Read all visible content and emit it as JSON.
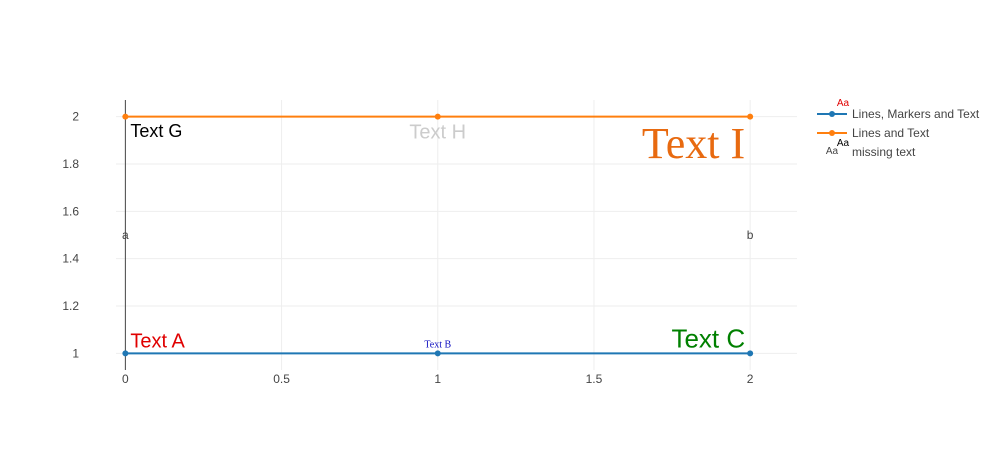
{
  "chart_data": {
    "type": "line",
    "title": "",
    "xlabel": "",
    "ylabel": "",
    "xlim": [
      -0.03,
      2.15
    ],
    "ylim": [
      0.93,
      2.07
    ],
    "grid": true,
    "legend_position": "right",
    "x_ticks": [
      {
        "value": 0,
        "label": "0"
      },
      {
        "value": 0.5,
        "label": "0.5"
      },
      {
        "value": 1,
        "label": "1"
      },
      {
        "value": 1.5,
        "label": "1.5"
      },
      {
        "value": 2,
        "label": "2"
      }
    ],
    "y_ticks": [
      {
        "value": 1,
        "label": "1"
      },
      {
        "value": 1.2,
        "label": "1.2"
      },
      {
        "value": 1.4,
        "label": "1.4"
      },
      {
        "value": 1.6,
        "label": "1.6"
      },
      {
        "value": 1.8,
        "label": "1.8"
      },
      {
        "value": 2,
        "label": "2"
      }
    ],
    "series": [
      {
        "name": "Lines, Markers and Text",
        "mode": "lines+markers+text",
        "color": "#1f77b4",
        "x": [
          0,
          1,
          2
        ],
        "y": [
          1,
          1,
          1
        ],
        "text": [
          {
            "label": "Text A",
            "position": "top right",
            "color": "#e00000",
            "font": "sans",
            "size": 20
          },
          {
            "label": "Text B",
            "position": "top center",
            "color": "#1010c0",
            "font": "serif",
            "size": 10
          },
          {
            "label": "Text C",
            "position": "top left",
            "color": "#008000",
            "font": "sans",
            "size": 26
          }
        ],
        "legend_sample": {
          "label": "Aa",
          "color": "#e00000"
        }
      },
      {
        "name": "Lines and Text",
        "mode": "lines+markers+text",
        "color": "#ff7f0e",
        "x": [
          0,
          1,
          2
        ],
        "y": [
          2,
          2,
          2
        ],
        "text": [
          {
            "label": "Text G",
            "position": "bottom right",
            "color": "#000000",
            "font": "sans",
            "size": 18
          },
          {
            "label": "Text H",
            "position": "bottom center",
            "color": "#cccccc",
            "font": "sans",
            "size": 20
          },
          {
            "label": "Text I",
            "position": "bottom left",
            "color": "#e86a10",
            "font": "serif",
            "size": 44
          }
        ],
        "legend_sample": {
          "label": "Aa",
          "color": "#000000"
        }
      },
      {
        "name": "missing text",
        "mode": "text",
        "color": "#444444",
        "x": [
          0,
          2
        ],
        "y": [
          1.5,
          1.5
        ],
        "text": [
          {
            "label": "a",
            "position": "middle center",
            "color": "#444444",
            "font": "sans",
            "size": 12
          },
          {
            "label": "b",
            "position": "middle center",
            "color": "#444444",
            "font": "sans",
            "size": 12
          }
        ],
        "legend_sample": {
          "label": "Aa",
          "color": "#444444"
        }
      }
    ]
  }
}
